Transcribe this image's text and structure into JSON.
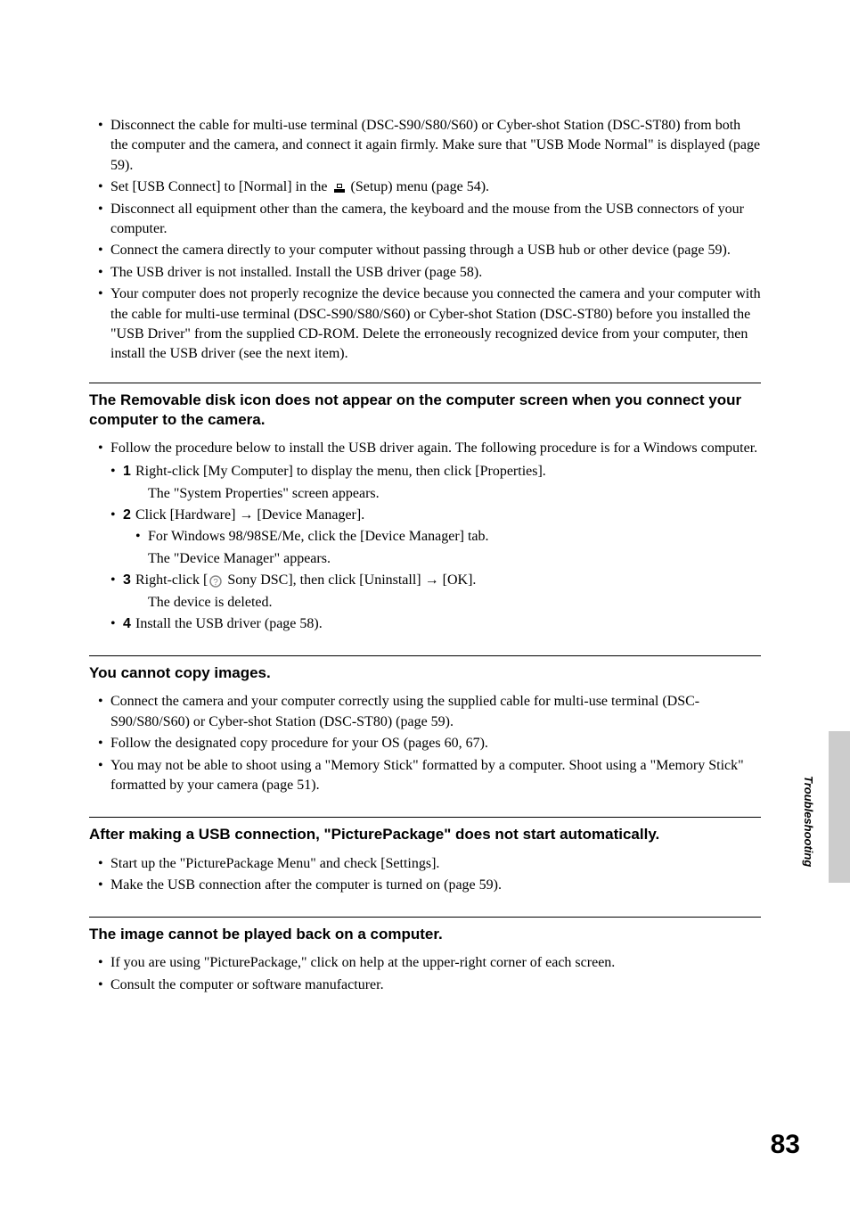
{
  "top_bullets": [
    "Disconnect the cable for multi-use terminal (DSC-S90/S80/S60) or Cyber-shot Station (DSC-ST80) from both the computer and the camera, and connect it again firmly. Make sure that \"USB Mode Normal\" is displayed (page 59).",
    "Set [USB Connect] to [Normal] in the __ICON_SETUP__ (Setup) menu (page 54).",
    "Disconnect all equipment other than the camera, the keyboard and the mouse from the USB connectors of your computer.",
    "Connect the camera directly to your computer without passing through a USB hub or other device (page 59).",
    "The USB driver is not installed. Install the USB driver (page 58).",
    "Your computer does not properly recognize the device because you connected the camera and your computer with the cable for multi-use terminal (DSC-S90/S80/S60) or Cyber-shot Station (DSC-ST80) before you installed the \"USB Driver\" from the supplied CD-ROM. Delete the erroneously recognized device from your computer, then install the USB driver (see the next item)."
  ],
  "section1": {
    "title": "The Removable disk icon does not appear on the computer screen when you connect your computer to the camera.",
    "intro": "Follow the procedure below to install the USB driver again. The following procedure is for a Windows computer.",
    "steps": [
      {
        "num": "1",
        "text": "Right-click [My Computer] to display the menu, then click [Properties].",
        "sub": [
          "The \"System Properties\" screen appears."
        ]
      },
      {
        "num": "2",
        "text": "Click [Hardware] → [Device Manager].",
        "sub_bullet": "For Windows 98/98SE/Me, click the [Device Manager] tab.",
        "sub": [
          "The \"Device Manager\" appears."
        ]
      },
      {
        "num": "3",
        "text": "Right-click [__ICON_UNKNOWN__ Sony DSC], then click [Uninstall] → [OK].",
        "sub": [
          "The device is deleted."
        ]
      },
      {
        "num": "4",
        "text": "Install the USB driver (page 58)."
      }
    ]
  },
  "section2": {
    "title": "You cannot copy images.",
    "bullets": [
      "Connect the camera and your computer correctly using the supplied cable for multi-use terminal (DSC-S90/S80/S60) or Cyber-shot Station (DSC-ST80)  (page 59).",
      "Follow the designated copy procedure for your OS (pages 60, 67).",
      "You may not be able to shoot using a \"Memory Stick\" formatted by a computer. Shoot using a \"Memory Stick\" formatted by your camera (page 51)."
    ]
  },
  "section3": {
    "title": "After making a USB connection, \"PicturePackage\" does not start automatically.",
    "bullets": [
      "Start up the \"PicturePackage Menu\" and check [Settings].",
      "Make the USB connection after the computer is turned on (page 59)."
    ]
  },
  "section4": {
    "title": "The image cannot be played back on a computer.",
    "bullets": [
      "If you are using \"PicturePackage,\" click on help at the upper-right corner of each screen.",
      "Consult the computer or software manufacturer."
    ]
  },
  "side_label": "Troubleshooting",
  "page_number": "83"
}
